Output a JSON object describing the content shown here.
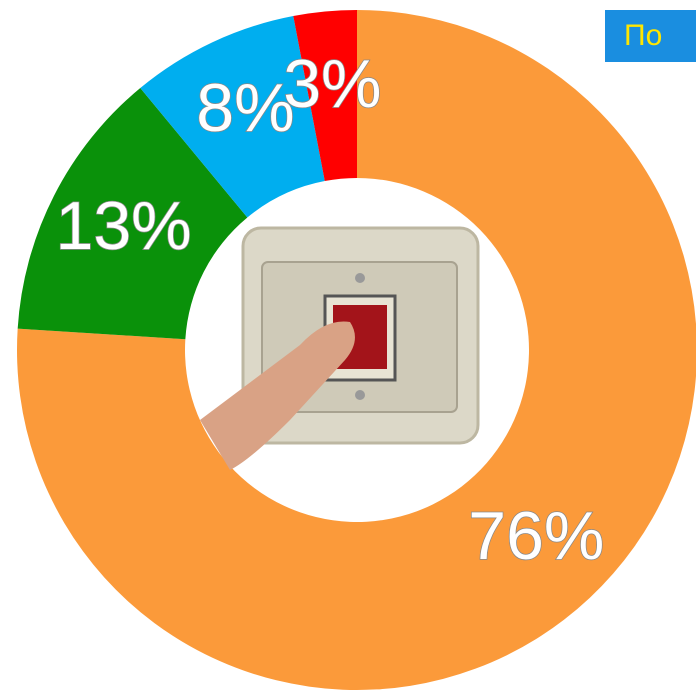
{
  "chart_data": {
    "type": "donut",
    "values": [
      76,
      13,
      8,
      3
    ],
    "value_labels": [
      "76%",
      "13%",
      "8%",
      "3%"
    ],
    "colors": [
      "#fb9a3a",
      "#0a910a",
      "#00aeef",
      "#ff0000"
    ],
    "annotation": "По"
  }
}
